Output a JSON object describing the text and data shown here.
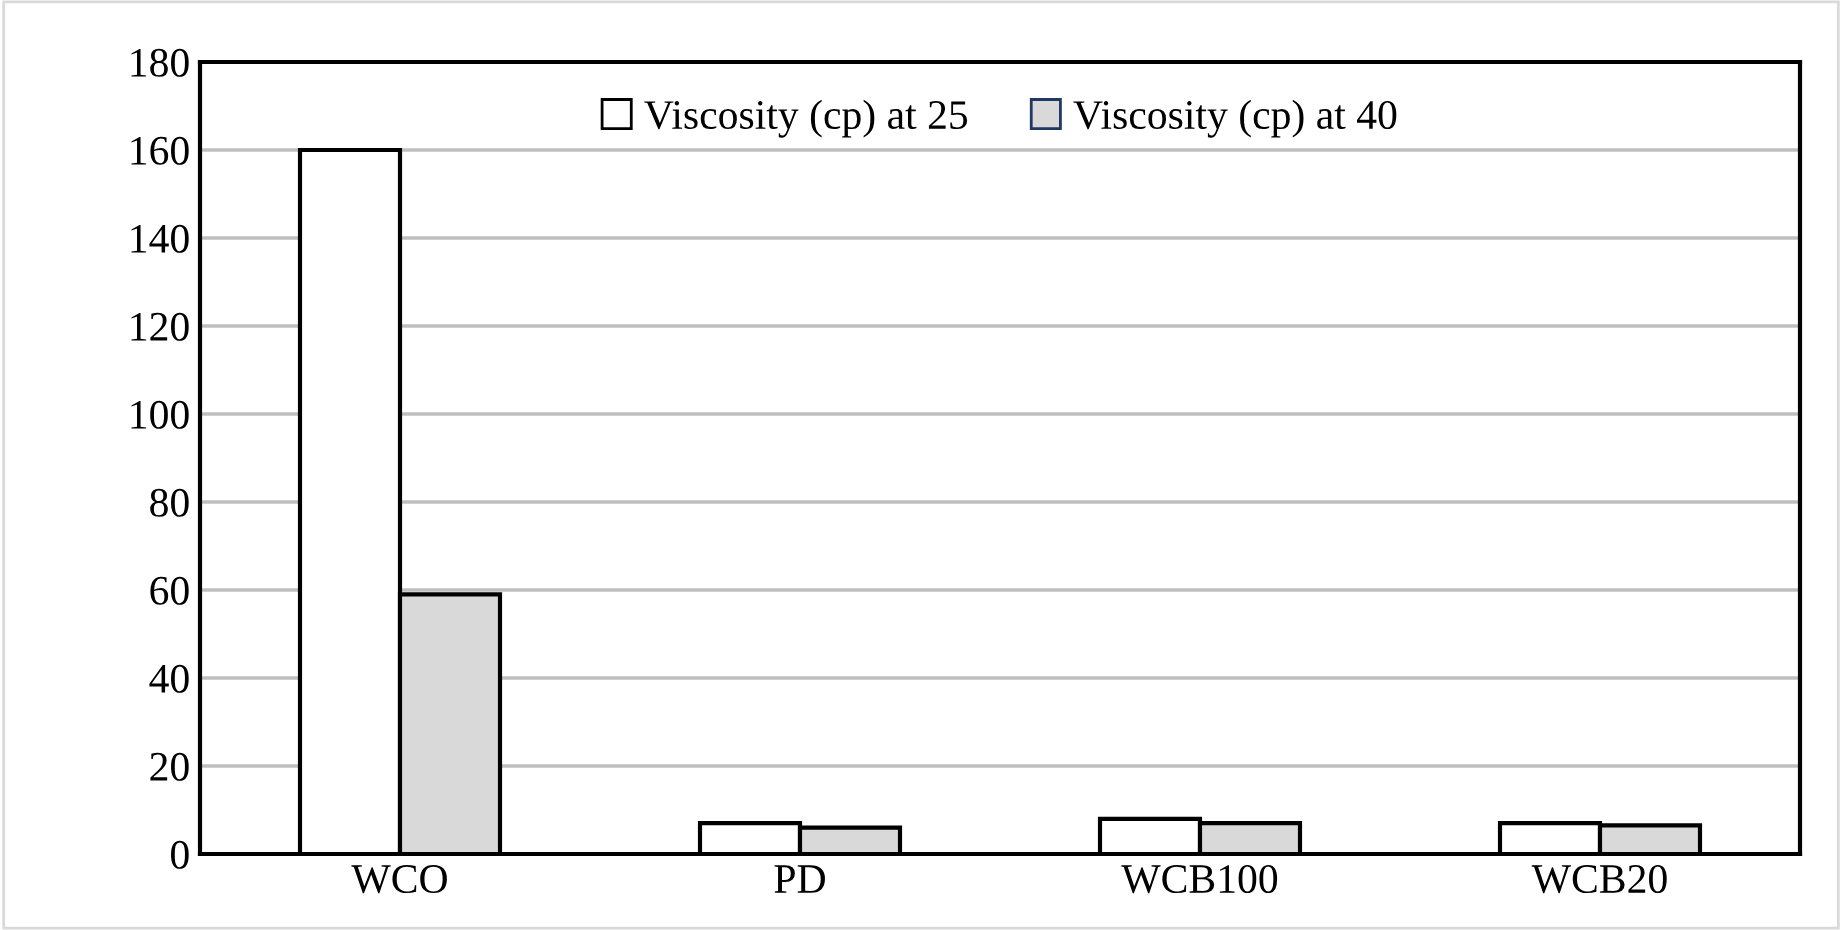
{
  "chart_data": {
    "type": "bar",
    "categories": [
      "WCO",
      "PD",
      "WCB100",
      "WCB20"
    ],
    "series": [
      {
        "name": "Viscosity (cp) at 25",
        "color": "#ffffff",
        "values": [
          160,
          7,
          8,
          7
        ]
      },
      {
        "name": "Viscosity (cp) at 40",
        "color": "#d9d9d9",
        "values": [
          59,
          6,
          7,
          6.5
        ]
      }
    ],
    "ylim": [
      0,
      180
    ],
    "yticks": [
      0,
      20,
      40,
      60,
      80,
      100,
      120,
      140,
      160,
      180
    ],
    "grid": "y",
    "legend": "top"
  }
}
